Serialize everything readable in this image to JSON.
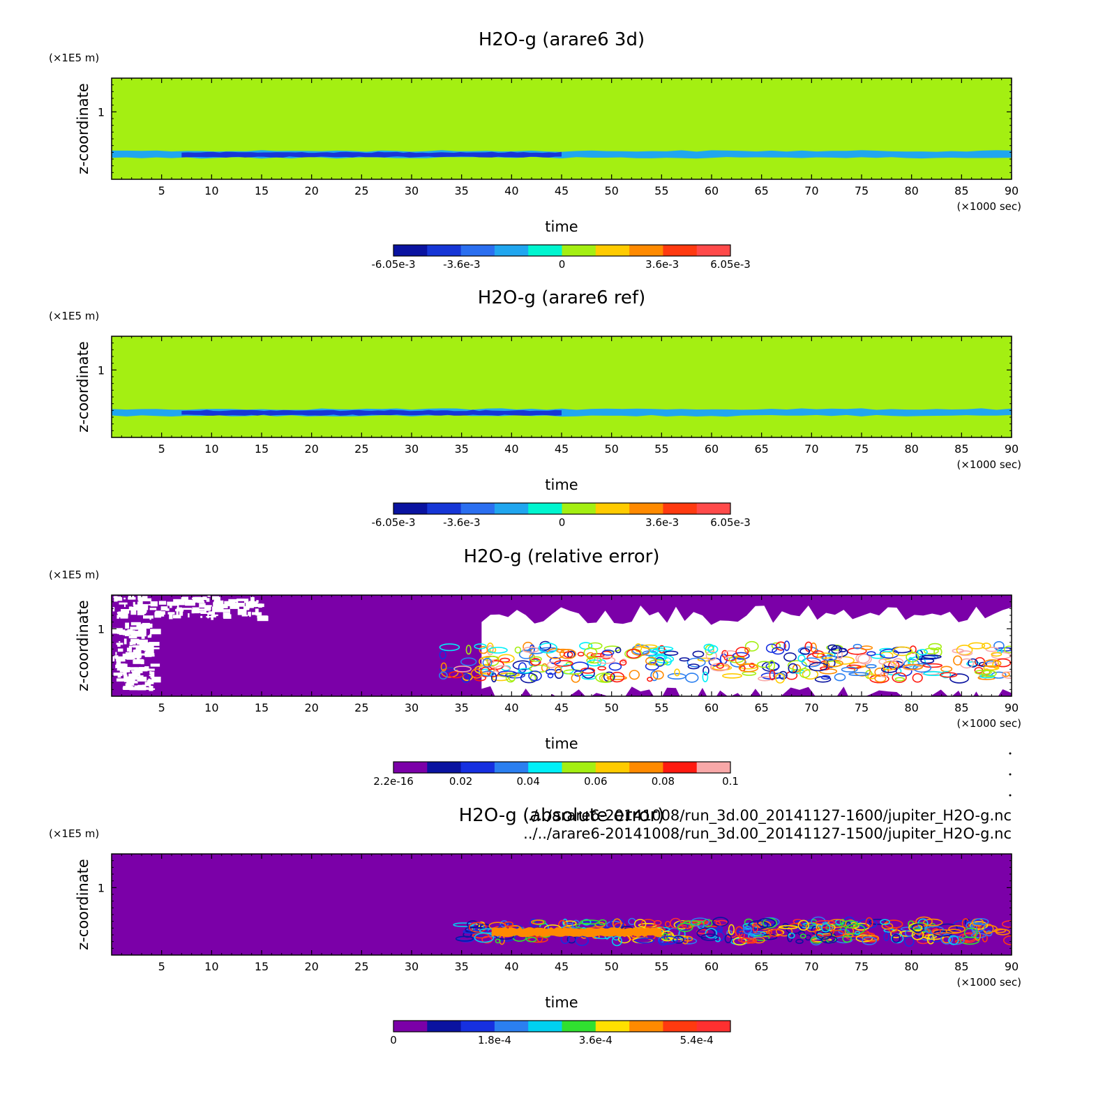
{
  "chart_data": [
    {
      "type": "heatmap",
      "title": "H2O-g (arare6 3d)",
      "xlabel": "time",
      "x_unit": "(×1000 sec)",
      "ylabel": "z-coordinate",
      "y_unit": "(×1E5 m)",
      "xlim": [
        0,
        90
      ],
      "ylim": [
        0,
        1.5
      ],
      "x_ticks": [
        5,
        10,
        15,
        20,
        25,
        30,
        35,
        40,
        45,
        50,
        55,
        60,
        65,
        70,
        75,
        80,
        85,
        90
      ],
      "y_ticks": [
        1
      ],
      "colorbar": {
        "colors": [
          "#0a13a0",
          "#1636d6",
          "#2b6ff0",
          "#20a6ef",
          "#00f5cf",
          "#a4ef12",
          "#ffcb00",
          "#ff8a00",
          "#ff3a10",
          "#ff4a4a"
        ],
        "tick_labels": [
          "-6.05e-3",
          "-3.6e-3",
          "0",
          "3.6e-3",
          "6.05e-3"
        ],
        "tick_values": [
          -0.00605,
          -0.0036,
          0,
          0.0036,
          0.00605
        ],
        "range": [
          -0.00605,
          0.00605
        ]
      },
      "background_level": 0,
      "features": [
        {
          "x": [
            4,
            90
          ],
          "y": [
            1.08,
            1.17
          ],
          "level": 0.0012,
          "pattern": "streaks"
        },
        {
          "x": [
            0,
            90
          ],
          "y": [
            0.32,
            0.42
          ],
          "level": -0.0024,
          "pattern": "band"
        },
        {
          "x": [
            7,
            45
          ],
          "y": [
            0.33,
            0.4
          ],
          "level": -0.0048,
          "pattern": "band"
        },
        {
          "x": [
            0,
            52
          ],
          "y": [
            0.0,
            0.28
          ],
          "level": 0.0012,
          "pattern": "layer"
        }
      ]
    },
    {
      "type": "heatmap",
      "title": "H2O-g (arare6 ref)",
      "xlabel": "time",
      "x_unit": "(×1000 sec)",
      "ylabel": "z-coordinate",
      "y_unit": "(×1E5 m)",
      "xlim": [
        0,
        90
      ],
      "ylim": [
        0,
        1.5
      ],
      "x_ticks": [
        5,
        10,
        15,
        20,
        25,
        30,
        35,
        40,
        45,
        50,
        55,
        60,
        65,
        70,
        75,
        80,
        85,
        90
      ],
      "y_ticks": [
        1
      ],
      "colorbar": {
        "colors": [
          "#0a13a0",
          "#1636d6",
          "#2b6ff0",
          "#20a6ef",
          "#00f5cf",
          "#a4ef12",
          "#ffcb00",
          "#ff8a00",
          "#ff3a10",
          "#ff4a4a"
        ],
        "tick_labels": [
          "-6.05e-3",
          "-3.6e-3",
          "0",
          "3.6e-3",
          "6.05e-3"
        ],
        "tick_values": [
          -0.00605,
          -0.0036,
          0,
          0.0036,
          0.00605
        ],
        "range": [
          -0.00605,
          0.00605
        ]
      },
      "background_level": 0,
      "features": [
        {
          "x": [
            4,
            90
          ],
          "y": [
            1.08,
            1.17
          ],
          "level": 0.0012,
          "pattern": "streaks"
        },
        {
          "x": [
            0,
            90
          ],
          "y": [
            0.32,
            0.42
          ],
          "level": -0.0024,
          "pattern": "band"
        },
        {
          "x": [
            7,
            45
          ],
          "y": [
            0.33,
            0.4
          ],
          "level": -0.0048,
          "pattern": "band"
        },
        {
          "x": [
            0,
            51
          ],
          "y": [
            0.0,
            0.28
          ],
          "level": 0.0012,
          "pattern": "layer"
        }
      ]
    },
    {
      "type": "heatmap",
      "title": "H2O-g (relative error)",
      "xlabel": "time",
      "x_unit": "(×1000 sec)",
      "ylabel": "z-coordinate",
      "y_unit": "(×1E5 m)",
      "xlim": [
        0,
        90
      ],
      "ylim": [
        0,
        1.5
      ],
      "x_ticks": [
        5,
        10,
        15,
        20,
        25,
        30,
        35,
        40,
        45,
        50,
        55,
        60,
        65,
        70,
        75,
        80,
        85,
        90
      ],
      "y_ticks": [
        1
      ],
      "colorbar": {
        "colors": [
          "#7b00a8",
          "#0a13a0",
          "#1630e0",
          "#2b7ff0",
          "#00f0f8",
          "#a4ef12",
          "#ffcb00",
          "#ff8a00",
          "#ff1a10",
          "#f8a8a8"
        ],
        "tick_labels": [
          "2.2e-16",
          "0.02",
          "0.04",
          "0.06",
          "0.08",
          "0.1"
        ],
        "tick_values": [
          2.2e-16,
          0.02,
          0.04,
          0.06,
          0.08,
          0.1
        ],
        "range": [
          0,
          0.1
        ]
      },
      "background_level": 0,
      "features": [
        {
          "x": [
            0,
            15
          ],
          "y": [
            1.18,
            1.5
          ],
          "level": "blank",
          "pattern": "speckle"
        },
        {
          "x": [
            0,
            4
          ],
          "y": [
            0.1,
            1.1
          ],
          "level": "blank",
          "pattern": "speckle"
        },
        {
          "x": [
            37,
            90
          ],
          "y": [
            0.0,
            1.2
          ],
          "level": "blank",
          "pattern": "region"
        },
        {
          "x": [
            33,
            90
          ],
          "y": [
            0.25,
            0.75
          ],
          "level": 0.05,
          "pattern": "noise"
        }
      ]
    },
    {
      "type": "heatmap",
      "title": "H2O-g (absolute error)",
      "xlabel": "time",
      "x_unit": "(×1000 sec)",
      "ylabel": "z-coordinate",
      "y_unit": "(×1E5 m)",
      "xlim": [
        0,
        90
      ],
      "ylim": [
        0,
        1.5
      ],
      "x_ticks": [
        5,
        10,
        15,
        20,
        25,
        30,
        35,
        40,
        45,
        50,
        55,
        60,
        65,
        70,
        75,
        80,
        85,
        90
      ],
      "y_ticks": [
        1
      ],
      "colorbar": {
        "colors": [
          "#7b00a8",
          "#0a13a0",
          "#1630e0",
          "#2b7ff0",
          "#00d0f0",
          "#30e030",
          "#ffe000",
          "#ff8a00",
          "#ff3a10",
          "#ff3030"
        ],
        "tick_labels": [
          "0",
          "1.8e-4",
          "3.6e-4",
          "5.4e-4"
        ],
        "tick_values": [
          0,
          0.00018,
          0.00036,
          0.00054
        ],
        "range": [
          0,
          0.0006
        ]
      },
      "background_level": 0,
      "features": [
        {
          "x": [
            35,
            90
          ],
          "y": [
            0.2,
            0.5
          ],
          "level": 0.00018,
          "pattern": "noise"
        },
        {
          "x": [
            38,
            55
          ],
          "y": [
            0.28,
            0.4
          ],
          "level": 0.00045,
          "pattern": "band"
        }
      ]
    }
  ],
  "file_paths": [
    "../../arare6-20141008/run_3d.00_20141127-1600/jupiter_H2O-g.nc",
    "../../arare6-20141008/run_3d.00_20141127-1500/jupiter_H2O-g.nc"
  ]
}
